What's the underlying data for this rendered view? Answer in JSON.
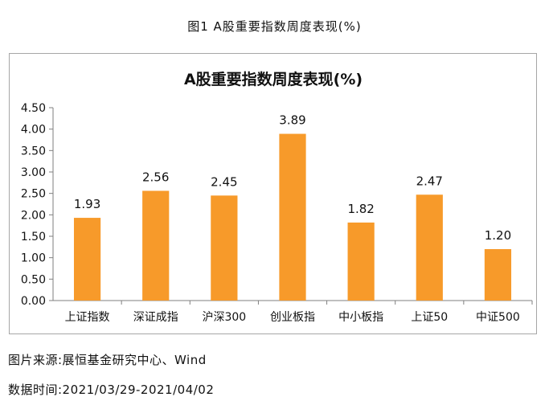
{
  "figure_caption": "图1 A股重要指数周度表现(%)",
  "source_note": "图片来源:展恒基金研究中心、Wind",
  "period_note": "数据时间:2021/03/29-2021/04/02",
  "colors": {
    "bar": "#f79a2a",
    "axis": "#7f7f7f",
    "text": "#111111"
  },
  "chart_data": {
    "type": "bar",
    "title": "A股重要指数周度表现(%)",
    "xlabel": "",
    "ylabel": "",
    "categories": [
      "上证指数",
      "深证成指",
      "沪深300",
      "创业板指",
      "中小板指",
      "上证50",
      "中证500"
    ],
    "values": [
      1.93,
      2.56,
      2.45,
      3.89,
      1.82,
      2.47,
      1.2
    ],
    "data_labels": [
      "1.93",
      "2.56",
      "2.45",
      "3.89",
      "1.82",
      "2.47",
      "1.20"
    ],
    "yticks": [
      "0.00",
      "0.50",
      "1.00",
      "1.50",
      "2.00",
      "2.50",
      "3.00",
      "3.50",
      "4.00",
      "4.50"
    ],
    "ylim": [
      0,
      4.5
    ],
    "grid": false,
    "legend": "none"
  }
}
